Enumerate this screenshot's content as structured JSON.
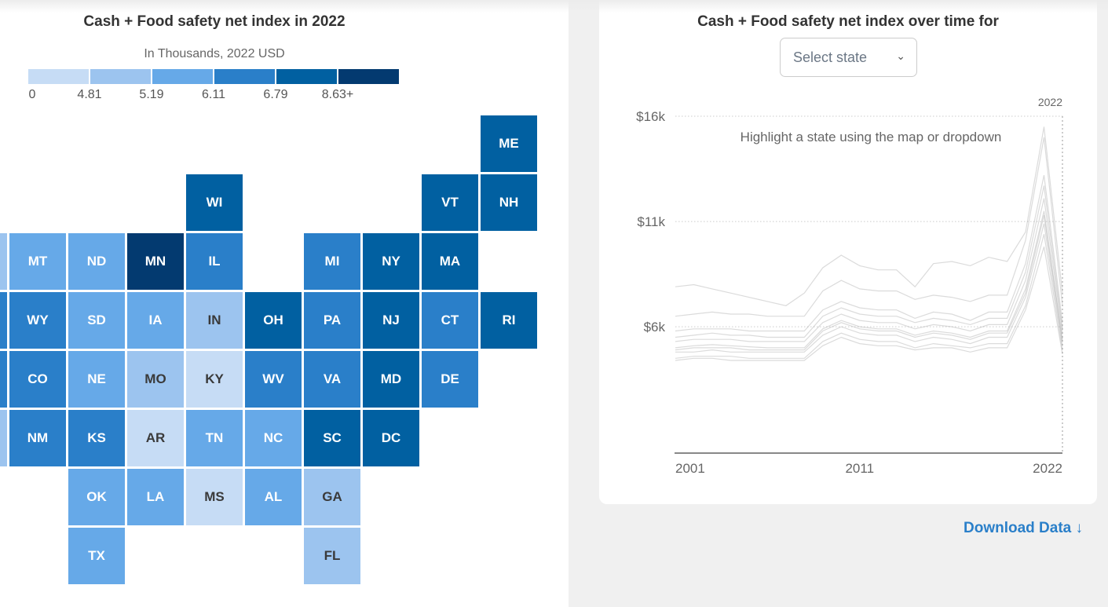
{
  "map": {
    "title": "Cash + Food safety net index in 2022",
    "legend_subtitle": "In Thousands, 2022 USD",
    "legend_colors": [
      "#c6dcf5",
      "#9cc4ef",
      "#66a9e8",
      "#2a7fc9",
      "#0160a1",
      "#033a70"
    ],
    "legend_labels": [
      "0",
      "4.81",
      "5.19",
      "6.11",
      "6.79",
      "8.63+"
    ],
    "states": [
      {
        "abbr": "ME",
        "bin": 5
      },
      {
        "abbr": "WI",
        "bin": 5
      },
      {
        "abbr": "VT",
        "bin": 5
      },
      {
        "abbr": "NH",
        "bin": 5
      },
      {
        "abbr": "MT",
        "bin": 3
      },
      {
        "abbr": "ND",
        "bin": 3
      },
      {
        "abbr": "MN",
        "bin": 6
      },
      {
        "abbr": "IL",
        "bin": 4
      },
      {
        "abbr": "MI",
        "bin": 4
      },
      {
        "abbr": "NY",
        "bin": 5
      },
      {
        "abbr": "MA",
        "bin": 5
      },
      {
        "abbr": "WY",
        "bin": 4
      },
      {
        "abbr": "SD",
        "bin": 3
      },
      {
        "abbr": "IA",
        "bin": 3
      },
      {
        "abbr": "IN",
        "bin": 2
      },
      {
        "abbr": "OH",
        "bin": 5
      },
      {
        "abbr": "PA",
        "bin": 4
      },
      {
        "abbr": "NJ",
        "bin": 5
      },
      {
        "abbr": "CT",
        "bin": 4
      },
      {
        "abbr": "RI",
        "bin": 5
      },
      {
        "abbr": "CO",
        "bin": 4
      },
      {
        "abbr": "NE",
        "bin": 3
      },
      {
        "abbr": "MO",
        "bin": 2
      },
      {
        "abbr": "KY",
        "bin": 1
      },
      {
        "abbr": "WV",
        "bin": 4
      },
      {
        "abbr": "VA",
        "bin": 4
      },
      {
        "abbr": "MD",
        "bin": 5
      },
      {
        "abbr": "DE",
        "bin": 4
      },
      {
        "abbr": "NM",
        "bin": 4
      },
      {
        "abbr": "KS",
        "bin": 4
      },
      {
        "abbr": "AR",
        "bin": 1
      },
      {
        "abbr": "TN",
        "bin": 3
      },
      {
        "abbr": "NC",
        "bin": 3
      },
      {
        "abbr": "SC",
        "bin": 5
      },
      {
        "abbr": "DC",
        "bin": 5
      },
      {
        "abbr": "OK",
        "bin": 3
      },
      {
        "abbr": "LA",
        "bin": 3
      },
      {
        "abbr": "MS",
        "bin": 1
      },
      {
        "abbr": "AL",
        "bin": 3
      },
      {
        "abbr": "GA",
        "bin": 2
      },
      {
        "abbr": "TX",
        "bin": 3
      },
      {
        "abbr": "FL",
        "bin": 2
      }
    ],
    "clipped_tile_bins": [
      2,
      4,
      4,
      2
    ]
  },
  "timeseries": {
    "title": "Cash + Food safety net index over time for",
    "select_placeholder": "Select state",
    "hint": "Highlight a state using the map or dropdown",
    "highlight_year_label": "2022"
  },
  "download_label": "Download Data ↓",
  "chart_data": {
    "type": "line",
    "x": [
      2001,
      2002,
      2003,
      2004,
      2005,
      2006,
      2007,
      2008,
      2009,
      2010,
      2011,
      2012,
      2013,
      2014,
      2015,
      2016,
      2017,
      2018,
      2019,
      2020,
      2021,
      2022
    ],
    "ylim": [
      0,
      16
    ],
    "y_ticks": [
      {
        "value": 16,
        "label": "$16k"
      },
      {
        "value": 11,
        "label": "$11k"
      },
      {
        "value": 6,
        "label": "$6k"
      }
    ],
    "x_ticks": [
      {
        "value": 2001,
        "label": "2001"
      },
      {
        "value": 2011,
        "label": "2011"
      },
      {
        "value": 2022,
        "label": "2022"
      }
    ],
    "grid": "horizontal dotted",
    "line_color": "#999999",
    "series": [
      {
        "values": [
          4.5,
          4.6,
          4.6,
          4.6,
          4.5,
          4.5,
          4.5,
          4.5,
          5.3,
          5.7,
          5.4,
          5.3,
          5.3,
          5.0,
          5.2,
          5.1,
          5.0,
          5.2,
          5.2,
          7.0,
          10.4,
          4.9
        ]
      },
      {
        "values": [
          4.8,
          4.8,
          4.9,
          4.8,
          4.8,
          4.8,
          4.8,
          4.8,
          5.6,
          6.0,
          5.7,
          5.6,
          5.6,
          5.3,
          5.5,
          5.4,
          5.2,
          5.5,
          5.5,
          7.4,
          10.9,
          5.1
        ]
      },
      {
        "values": [
          5.0,
          5.1,
          5.15,
          5.1,
          5.05,
          5.0,
          5.0,
          5.0,
          5.9,
          6.3,
          6.0,
          5.9,
          5.9,
          5.6,
          5.8,
          5.7,
          5.5,
          5.8,
          5.8,
          7.8,
          11.5,
          5.4
        ]
      },
      {
        "values": [
          5.3,
          5.4,
          5.4,
          5.4,
          5.3,
          5.3,
          5.3,
          5.3,
          6.2,
          6.6,
          6.3,
          6.2,
          6.2,
          5.9,
          6.1,
          6.0,
          5.8,
          6.1,
          6.1,
          8.2,
          12.1,
          5.7
        ]
      },
      {
        "values": [
          5.8,
          5.9,
          5.9,
          5.9,
          5.8,
          5.8,
          5.8,
          5.8,
          6.8,
          7.2,
          6.9,
          6.8,
          6.8,
          6.4,
          6.7,
          6.6,
          6.3,
          6.7,
          6.7,
          9.0,
          13.2,
          6.2
        ]
      },
      {
        "values": [
          6.5,
          6.6,
          6.7,
          6.6,
          6.6,
          6.5,
          6.5,
          6.5,
          7.7,
          8.2,
          7.8,
          7.7,
          7.7,
          7.3,
          7.5,
          7.4,
          7.2,
          7.5,
          7.5,
          10.1,
          15.0,
          7.0
        ]
      },
      {
        "values": [
          7.9,
          8.0,
          7.8,
          7.6,
          7.4,
          7.2,
          7.0,
          7.6,
          8.8,
          9.4,
          8.9,
          8.7,
          8.7,
          7.9,
          9.0,
          9.1,
          8.9,
          9.3,
          9.1,
          10.5,
          15.5,
          7.6
        ]
      },
      {
        "values": [
          4.4,
          4.5,
          4.5,
          4.4,
          4.4,
          4.4,
          4.4,
          4.4,
          5.1,
          5.5,
          5.2,
          5.1,
          5.1,
          4.9,
          5.0,
          5.0,
          4.8,
          5.0,
          5.0,
          6.8,
          9.8,
          4.7
        ]
      },
      {
        "values": [
          5.5,
          5.6,
          5.7,
          5.6,
          5.6,
          5.5,
          5.5,
          5.5,
          6.5,
          6.9,
          6.6,
          6.5,
          6.5,
          6.2,
          6.4,
          6.3,
          6.1,
          6.4,
          6.4,
          8.6,
          12.7,
          5.9
        ]
      },
      {
        "values": [
          4.9,
          5.0,
          5.0,
          5.0,
          4.9,
          4.9,
          4.9,
          4.9,
          5.8,
          6.2,
          5.9,
          5.8,
          5.8,
          5.5,
          5.7,
          5.6,
          5.4,
          5.7,
          5.7,
          7.6,
          11.3,
          5.3
        ]
      }
    ]
  }
}
